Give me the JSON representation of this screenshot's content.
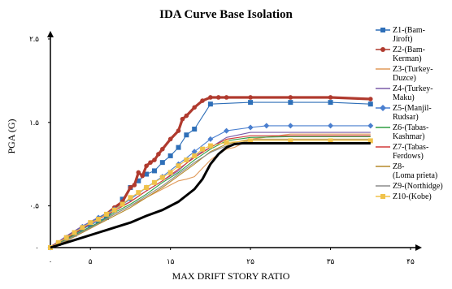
{
  "chart_data": {
    "type": "line",
    "title": "IDA Curve  Base Isolation",
    "xlabel": "MAX DRIFT STORY RATIO",
    "ylabel": "PGA (G)",
    "xlim": [
      0,
      45
    ],
    "ylim": [
      0,
      2.5
    ],
    "x_ticks": [
      {
        "value": 0,
        "label": "۰"
      },
      {
        "value": 5,
        "label": "۵"
      },
      {
        "value": 15,
        "label": "۱۵"
      },
      {
        "value": 25,
        "label": "۲۵"
      },
      {
        "value": 35,
        "label": "۳۵"
      },
      {
        "value": 45,
        "label": "۴۵"
      }
    ],
    "y_ticks": [
      {
        "value": 0,
        "label": "۰"
      },
      {
        "value": 0.5,
        "label": "۰.۵"
      },
      {
        "value": 1.5,
        "label": "۱.۵"
      },
      {
        "value": 2.5,
        "label": "۲.۵"
      }
    ],
    "grid": false,
    "legend_position": "right",
    "series": [
      {
        "name": "Z1-(Bam-Jiroft)",
        "color": "#2e6fb8",
        "marker": "square",
        "x": [
          0,
          1,
          2,
          3,
          4,
          5,
          6,
          7,
          8,
          9,
          10,
          11,
          12,
          13,
          14,
          15,
          16,
          17,
          18,
          20,
          25,
          30,
          35,
          40
        ],
        "y": [
          0,
          0.05,
          0.1,
          0.16,
          0.22,
          0.27,
          0.32,
          0.36,
          0.45,
          0.58,
          0.72,
          0.8,
          0.88,
          0.92,
          1.02,
          1.1,
          1.2,
          1.35,
          1.42,
          1.72,
          1.74,
          1.74,
          1.74,
          1.72
        ]
      },
      {
        "name": "Z2-(Bam-Kerman)",
        "color": "#b03a2e",
        "marker": "circle",
        "x": [
          0,
          1,
          2,
          3,
          4,
          5,
          6,
          7,
          8,
          9,
          10,
          10.5,
          11,
          11.5,
          12,
          12.5,
          13,
          13.5,
          14,
          15,
          16,
          16.5,
          17,
          18,
          19,
          20,
          21,
          22,
          25,
          30,
          35,
          40
        ],
        "y": [
          0,
          0.06,
          0.12,
          0.18,
          0.24,
          0.3,
          0.35,
          0.4,
          0.48,
          0.55,
          0.72,
          0.75,
          0.9,
          0.86,
          0.98,
          1.02,
          1.05,
          1.12,
          1.18,
          1.3,
          1.4,
          1.54,
          1.58,
          1.68,
          1.76,
          1.8,
          1.8,
          1.8,
          1.8,
          1.8,
          1.8,
          1.78
        ]
      },
      {
        "name": "Z3-(Turkey-Duzce)",
        "color": "#e09a5a",
        "marker": "none",
        "x": [
          0,
          2,
          4,
          6,
          8,
          10,
          12,
          14,
          16,
          17,
          18,
          19,
          20,
          21,
          22,
          23,
          24,
          25,
          30,
          35,
          40
        ],
        "y": [
          0,
          0.1,
          0.2,
          0.3,
          0.4,
          0.5,
          0.6,
          0.7,
          0.8,
          0.82,
          0.85,
          0.95,
          1.05,
          1.12,
          1.18,
          1.2,
          1.25,
          1.3,
          1.36,
          1.36,
          1.36
        ]
      },
      {
        "name": "Z4-(Turkey-Maku)",
        "color": "#7a5ba8",
        "marker": "none",
        "x": [
          0,
          2,
          4,
          6,
          8,
          10,
          12,
          14,
          16,
          18,
          20,
          22,
          25,
          30,
          35,
          40
        ],
        "y": [
          0,
          0.14,
          0.26,
          0.36,
          0.46,
          0.55,
          0.68,
          0.8,
          0.92,
          1.1,
          1.2,
          1.32,
          1.38,
          1.38,
          1.38,
          1.38
        ]
      },
      {
        "name": "Z5-(Manjil-Rudsar)",
        "color": "#4a7fcf",
        "marker": "diamond",
        "x": [
          0,
          2,
          4,
          6,
          8,
          10,
          12,
          14,
          16,
          18,
          20,
          22,
          25,
          27,
          30,
          35,
          40
        ],
        "y": [
          0,
          0.12,
          0.25,
          0.36,
          0.46,
          0.58,
          0.72,
          0.85,
          1.0,
          1.15,
          1.3,
          1.4,
          1.44,
          1.46,
          1.46,
          1.46,
          1.46
        ]
      },
      {
        "name": "Z6-(Tabas-Kashmar)",
        "color": "#2e9e44",
        "marker": "none",
        "x": [
          0,
          2,
          4,
          6,
          8,
          10,
          12,
          14,
          16,
          18,
          20,
          22,
          25,
          30,
          35,
          40
        ],
        "y": [
          0,
          0.1,
          0.2,
          0.3,
          0.42,
          0.52,
          0.64,
          0.78,
          0.9,
          1.05,
          1.18,
          1.28,
          1.32,
          1.33,
          1.33,
          1.33
        ]
      },
      {
        "name": "Z7-(Tabas-Ferdows)",
        "color": "#d23a3a",
        "marker": "none",
        "x": [
          0,
          2,
          4,
          6,
          8,
          10,
          12,
          14,
          16,
          18,
          20,
          22,
          25,
          30,
          35,
          40
        ],
        "y": [
          0,
          0.12,
          0.24,
          0.34,
          0.44,
          0.55,
          0.68,
          0.8,
          0.94,
          1.08,
          1.2,
          1.3,
          1.34,
          1.34,
          1.34,
          1.34
        ]
      },
      {
        "name": "Z8-(Loma prieta)",
        "color": "#b58a2a",
        "marker": "none",
        "x": [
          0,
          2,
          4,
          6,
          8,
          10,
          12,
          14,
          16,
          18,
          20,
          22,
          25,
          30,
          35,
          40
        ],
        "y": [
          0,
          0.08,
          0.18,
          0.28,
          0.38,
          0.48,
          0.6,
          0.72,
          0.86,
          1.0,
          1.15,
          1.24,
          1.3,
          1.3,
          1.3,
          1.3
        ]
      },
      {
        "name": "Z9-(Northidge)",
        "color": "#8c8c8c",
        "marker": "none",
        "x": [
          0,
          2,
          4,
          6,
          8,
          10,
          12,
          14,
          16,
          18,
          20,
          22,
          25,
          30,
          35,
          40
        ],
        "y": [
          0,
          0.09,
          0.19,
          0.29,
          0.4,
          0.5,
          0.62,
          0.74,
          0.88,
          1.02,
          1.14,
          1.22,
          1.28,
          1.28,
          1.28,
          1.28
        ]
      },
      {
        "name": "Z10-(Kobe)",
        "color": "#f0c24a",
        "marker": "square",
        "x": [
          0,
          1,
          2,
          3,
          4,
          5,
          6,
          7,
          8,
          9,
          10,
          11,
          12,
          13,
          14,
          15,
          16,
          17,
          18,
          19,
          20,
          22,
          25,
          30,
          35,
          40
        ],
        "y": [
          0,
          0.06,
          0.12,
          0.18,
          0.24,
          0.3,
          0.34,
          0.4,
          0.45,
          0.52,
          0.6,
          0.66,
          0.72,
          0.78,
          0.84,
          0.9,
          0.98,
          1.05,
          1.1,
          1.18,
          1.22,
          1.26,
          1.28,
          1.28,
          1.28,
          1.28
        ]
      },
      {
        "name": "",
        "color": "#000000",
        "marker": "none",
        "x": [
          0,
          2,
          4,
          6,
          8,
          10,
          12,
          14,
          16,
          18,
          19,
          20,
          21,
          22,
          23,
          24,
          25,
          30,
          35,
          40
        ],
        "y": [
          0,
          0.06,
          0.12,
          0.18,
          0.24,
          0.3,
          0.38,
          0.45,
          0.55,
          0.7,
          0.82,
          1.0,
          1.12,
          1.2,
          1.24,
          1.25,
          1.25,
          1.25,
          1.25,
          1.25
        ]
      }
    ]
  }
}
